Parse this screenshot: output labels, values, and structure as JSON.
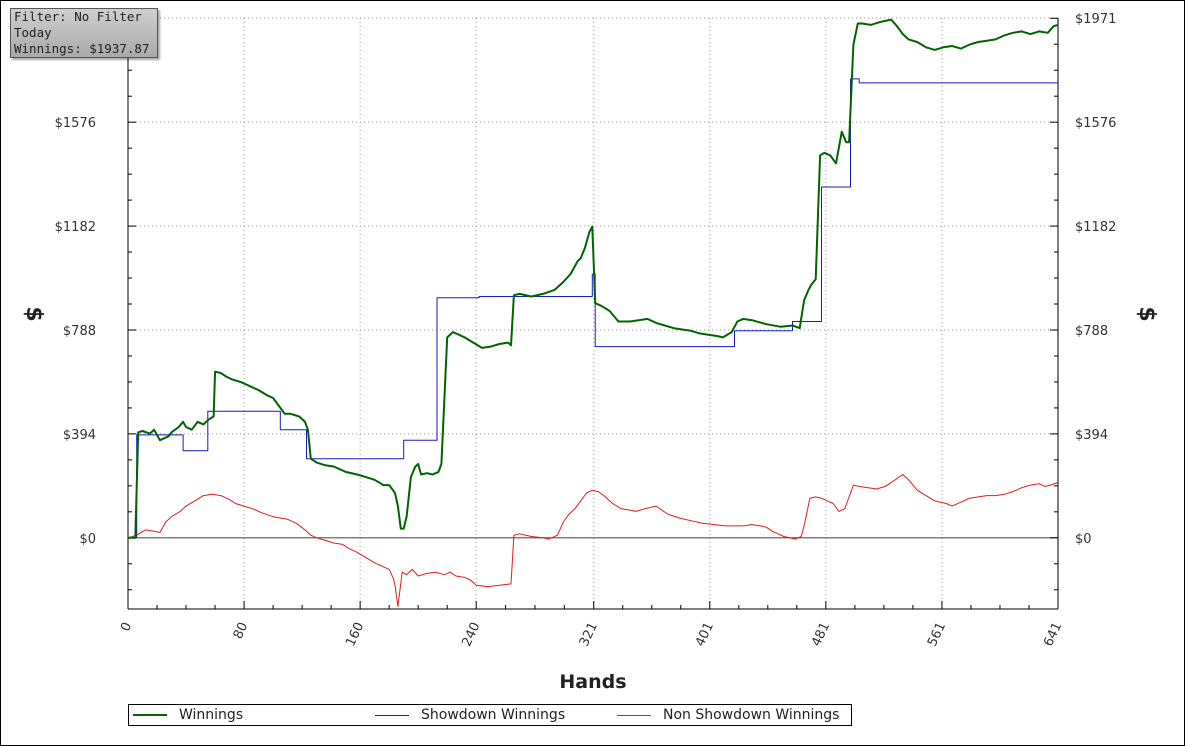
{
  "info_box": {
    "filter": "Filter: No Filter",
    "period": "Today",
    "winnings": "Winnings: $1937.87"
  },
  "colors": {
    "winnings": "#006400",
    "showdown": "#1a1acc",
    "non_showdown": "#e21b1b",
    "zero_line": "#555555",
    "grid": "#9a9a9a"
  },
  "chart_data": {
    "type": "line",
    "title": "",
    "xlabel": "Hands",
    "ylabel": "$",
    "xlim": [
      0,
      641
    ],
    "ylim": [
      -270,
      1971
    ],
    "x_ticks": [
      0,
      80,
      160,
      240,
      321,
      401,
      481,
      561,
      641
    ],
    "x_tick_labels": [
      "0",
      "80",
      "160",
      "240",
      "321",
      "401",
      "481",
      "561",
      "641"
    ],
    "y_ticks": [
      0,
      394,
      788,
      1182,
      1576,
      1971
    ],
    "y_tick_labels_left": [
      "$0",
      "$394",
      "$788",
      "$1182",
      "$1576",
      ""
    ],
    "y_tick_labels_right": [
      "$0",
      "$394",
      "$788",
      "$1182",
      "$1576",
      "$1971"
    ],
    "grid": true,
    "legend_position": "bottom",
    "series": [
      {
        "name": "Winnings",
        "x": [
          0,
          5,
          7,
          10,
          15,
          18,
          22,
          28,
          30,
          35,
          38,
          40,
          44,
          48,
          52,
          56,
          59,
          60,
          64,
          68,
          72,
          78,
          84,
          90,
          96,
          100,
          104,
          108,
          112,
          118,
          122,
          124,
          126,
          130,
          136,
          142,
          150,
          158,
          164,
          170,
          176,
          180,
          184,
          186,
          188,
          190,
          192,
          195,
          198,
          200,
          202,
          206,
          210,
          214,
          216,
          220,
          224,
          228,
          232,
          238,
          244,
          250,
          256,
          262,
          264,
          266,
          270,
          278,
          286,
          294,
          300,
          305,
          310,
          312,
          315,
          318,
          320,
          322,
          326,
          332,
          338,
          346,
          352,
          358,
          364,
          370,
          376,
          382,
          388,
          394,
          400,
          406,
          410,
          416,
          420,
          424,
          430,
          440,
          450,
          458,
          463,
          466,
          469,
          471,
          474,
          477,
          480,
          484,
          488,
          492,
          495,
          497,
          500,
          503,
          506,
          512,
          518,
          522,
          526,
          530,
          534,
          538,
          544,
          550,
          556,
          562,
          568,
          574,
          580,
          586,
          592,
          598,
          604,
          610,
          616,
          622,
          628,
          634,
          638,
          641
        ],
        "y": [
          0,
          0,
          400,
          405,
          395,
          410,
          370,
          385,
          400,
          420,
          440,
          420,
          410,
          440,
          430,
          450,
          460,
          630,
          625,
          610,
          600,
          590,
          575,
          560,
          540,
          530,
          500,
          470,
          470,
          460,
          440,
          410,
          300,
          285,
          275,
          270,
          250,
          240,
          230,
          220,
          200,
          200,
          170,
          120,
          35,
          35,
          80,
          230,
          270,
          280,
          240,
          245,
          240,
          250,
          280,
          760,
          780,
          770,
          760,
          740,
          720,
          725,
          735,
          740,
          730,
          920,
          925,
          915,
          925,
          940,
          970,
          1000,
          1050,
          1060,
          1100,
          1160,
          1180,
          890,
          880,
          860,
          820,
          820,
          825,
          830,
          815,
          805,
          795,
          790,
          785,
          775,
          770,
          765,
          760,
          780,
          820,
          830,
          825,
          810,
          800,
          805,
          795,
          900,
          940,
          960,
          980,
          1450,
          1460,
          1450,
          1420,
          1540,
          1500,
          1500,
          1870,
          1950,
          1950,
          1945,
          1955,
          1960,
          1965,
          1940,
          1910,
          1890,
          1880,
          1860,
          1850,
          1860,
          1865,
          1855,
          1870,
          1880,
          1885,
          1890,
          1905,
          1915,
          1920,
          1910,
          1920,
          1915,
          1940,
          1945
        ]
      },
      {
        "name": "Showdown Winnings",
        "x": [
          0,
          6,
          6,
          38,
          38,
          55,
          55,
          105,
          105,
          123,
          123,
          190,
          190,
          213,
          213,
          242,
          242,
          320,
          320,
          322,
          322,
          418,
          418,
          458,
          458,
          478,
          478,
          498,
          498,
          504,
          504,
          580,
          580,
          641
        ],
        "y": [
          0,
          0,
          390,
          390,
          330,
          330,
          480,
          480,
          410,
          410,
          300,
          300,
          370,
          370,
          910,
          910,
          915,
          915,
          1000,
          1000,
          725,
          725,
          785,
          785,
          820,
          820,
          1330,
          1330,
          1740,
          1740,
          1725,
          1725,
          1725,
          1725
        ]
      },
      {
        "name": "Non Showdown Winnings",
        "x": [
          0,
          6,
          12,
          18,
          22,
          26,
          30,
          36,
          40,
          46,
          52,
          58,
          64,
          70,
          74,
          80,
          86,
          92,
          100,
          110,
          116,
          122,
          126,
          130,
          136,
          142,
          148,
          152,
          158,
          164,
          170,
          176,
          180,
          183,
          184,
          186,
          189,
          192,
          196,
          200,
          206,
          212,
          218,
          222,
          226,
          232,
          236,
          240,
          248,
          256,
          264,
          266,
          270,
          278,
          286,
          290,
          296,
          300,
          304,
          308,
          312,
          316,
          320,
          324,
          328,
          334,
          340,
          346,
          350,
          356,
          364,
          372,
          380,
          388,
          396,
          404,
          412,
          418,
          424,
          430,
          436,
          440,
          444,
          448,
          452,
          456,
          460,
          464,
          466,
          470,
          474,
          478,
          482,
          486,
          490,
          494,
          498,
          500,
          504,
          510,
          516,
          522,
          526,
          530,
          534,
          538,
          544,
          550,
          556,
          560,
          564,
          568,
          574,
          580,
          586,
          592,
          598,
          604,
          610,
          616,
          622,
          628,
          632,
          636,
          641
        ],
        "y": [
          0,
          10,
          30,
          25,
          20,
          60,
          80,
          100,
          120,
          140,
          160,
          165,
          160,
          145,
          130,
          120,
          110,
          95,
          80,
          70,
          55,
          30,
          10,
          0,
          -10,
          -20,
          -25,
          -40,
          -55,
          -75,
          -95,
          -110,
          -120,
          -155,
          -180,
          -260,
          -130,
          -140,
          -120,
          -145,
          -135,
          -130,
          -140,
          -130,
          -145,
          -150,
          -160,
          -180,
          -185,
          -180,
          -175,
          10,
          15,
          5,
          0,
          -5,
          10,
          60,
          90,
          110,
          140,
          170,
          180,
          175,
          160,
          130,
          110,
          105,
          100,
          110,
          120,
          90,
          75,
          65,
          55,
          50,
          45,
          45,
          45,
          50,
          45,
          40,
          25,
          15,
          5,
          0,
          -5,
          5,
          45,
          150,
          155,
          150,
          140,
          130,
          100,
          110,
          170,
          200,
          195,
          190,
          185,
          195,
          210,
          225,
          240,
          220,
          180,
          160,
          140,
          135,
          130,
          120,
          135,
          150,
          155,
          160,
          160,
          165,
          175,
          190,
          200,
          205,
          195,
          200,
          210
        ]
      }
    ]
  }
}
